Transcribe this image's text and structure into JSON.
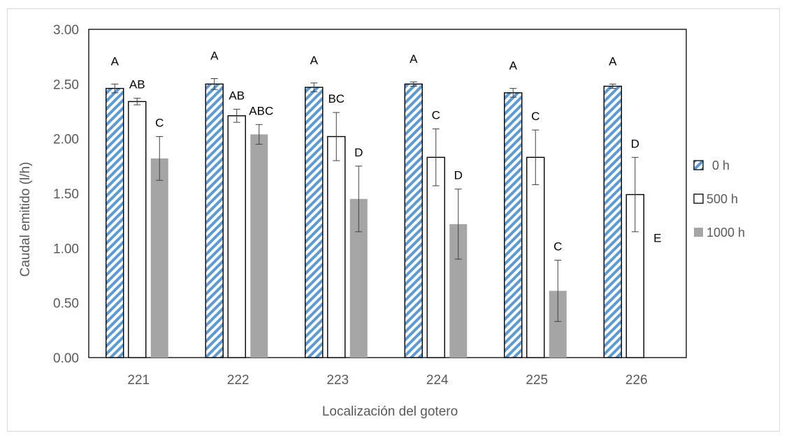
{
  "chart_data": {
    "type": "bar",
    "title": "",
    "xlabel": "Localización del gotero",
    "ylabel": "Caudal emitido (l/h)",
    "ylim": [
      0,
      3
    ],
    "yticks": [
      0,
      0.5,
      1,
      1.5,
      2,
      2.5,
      3
    ],
    "ytick_labels": [
      "0.00",
      "0.50",
      "1.00",
      "1.50",
      "2.00",
      "2.50",
      "3.00"
    ],
    "categories": [
      "221",
      "222",
      "223",
      "224",
      "225",
      "226"
    ],
    "grid": false,
    "legend_position": "right",
    "series": [
      {
        "name": "0 h",
        "style": "hatched",
        "color": "#5b9bd5",
        "values": [
          2.46,
          2.5,
          2.47,
          2.5,
          2.42,
          2.48
        ],
        "errors": [
          0.04,
          0.05,
          0.04,
          0.02,
          0.04,
          0.02
        ],
        "letters": [
          "A",
          "A",
          "A",
          "A",
          "A",
          "A"
        ]
      },
      {
        "name": "500 h",
        "style": "outline",
        "color": "#000000",
        "values": [
          2.34,
          2.21,
          2.02,
          1.83,
          1.83,
          1.49
        ],
        "errors": [
          0.03,
          0.06,
          0.22,
          0.26,
          0.25,
          0.34
        ],
        "letters": [
          "AB",
          "AB",
          "BC",
          "C",
          "C",
          "D"
        ]
      },
      {
        "name": "1000 h",
        "style": "solid",
        "color": "#a5a5a5",
        "values": [
          1.82,
          2.04,
          1.45,
          1.22,
          0.61,
          0
        ],
        "errors": [
          0.2,
          0.09,
          0.3,
          0.32,
          0.28,
          0
        ],
        "letters": [
          "C",
          "ABC",
          "D",
          "D",
          "C",
          "E"
        ]
      }
    ]
  }
}
